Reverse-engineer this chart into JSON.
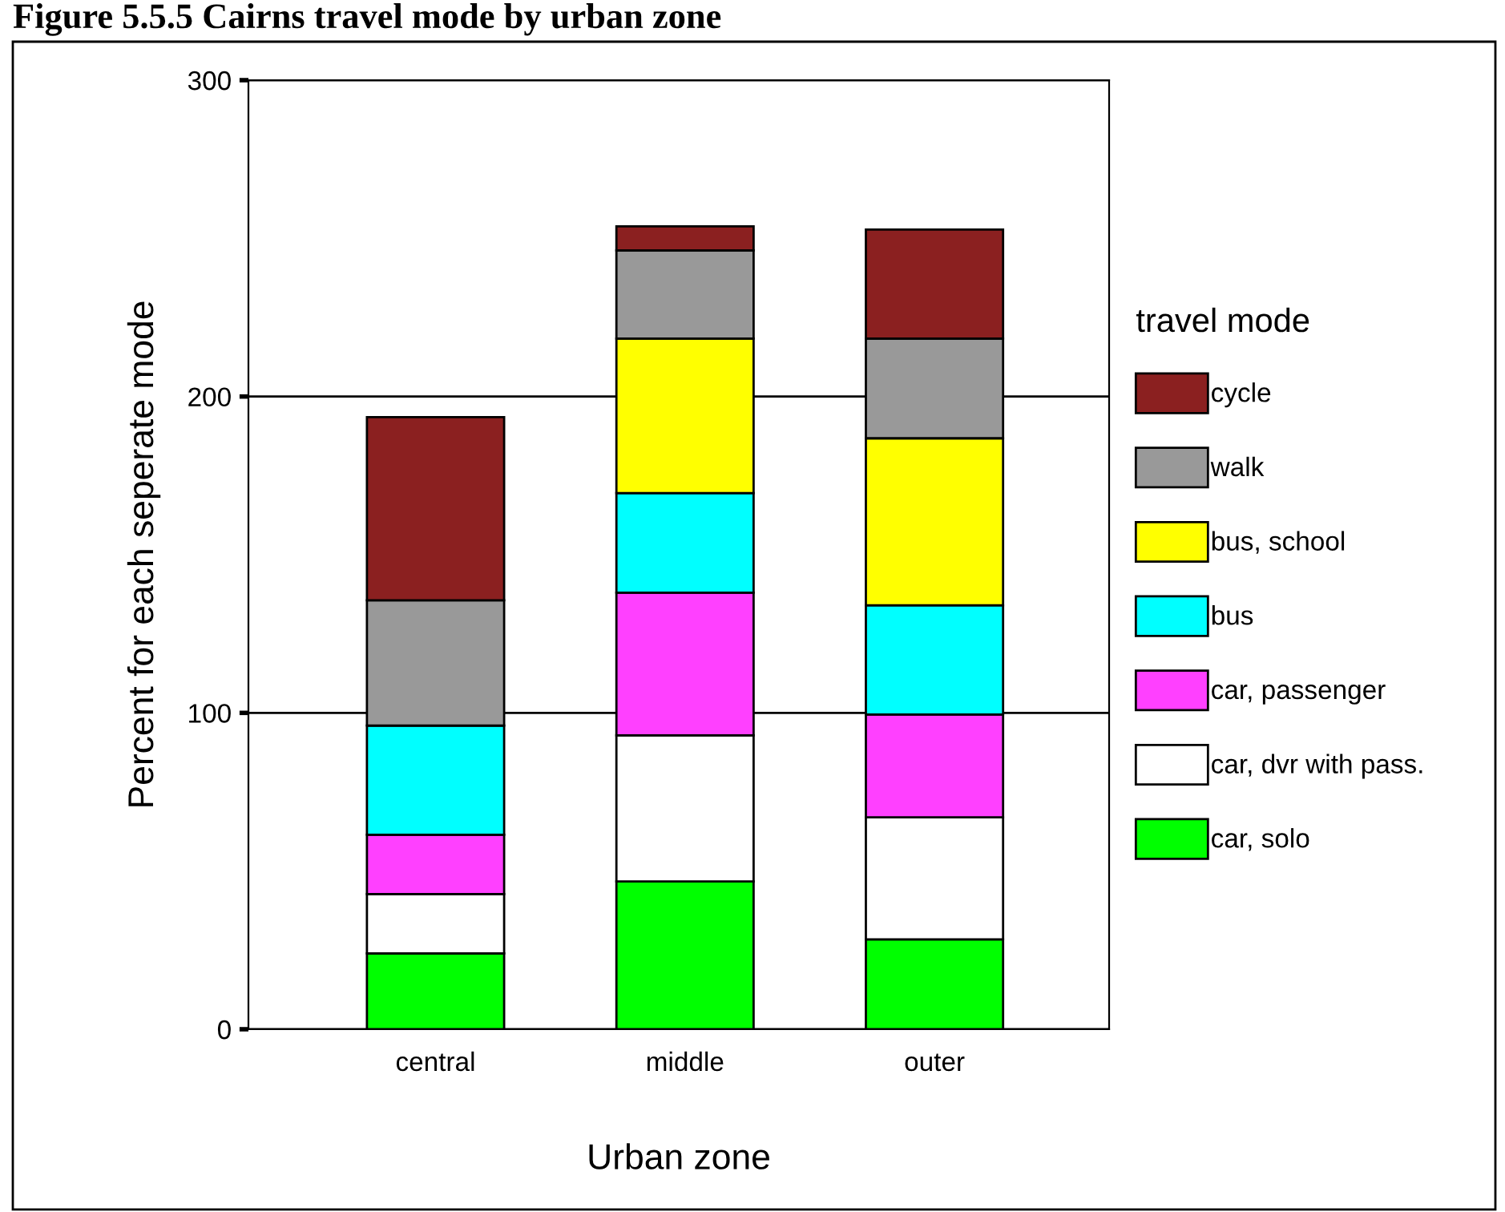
{
  "chart_data": {
    "type": "bar",
    "title": "Figure 5.5.5 Cairns travel mode by urban zone",
    "xlabel": "Urban zone",
    "ylabel": "Percent for each seperate mode",
    "legend_title": "travel mode",
    "categories": [
      "central",
      "middle",
      "outer"
    ],
    "stacked": true,
    "ylim": [
      0,
      300
    ],
    "yticks": [
      0,
      100,
      200,
      300
    ],
    "grid": "y",
    "legend": "right",
    "series": [
      {
        "name": "car, solo",
        "color": "#00ff00",
        "values": [
          24,
          46.7,
          28.4
        ]
      },
      {
        "name": "car, dvr with pass.",
        "color": "#ffffff",
        "values": [
          18.7,
          46.2,
          38.6
        ]
      },
      {
        "name": "car, passenger",
        "color": "#ff40ff",
        "values": [
          18.8,
          45.1,
          32.5
        ]
      },
      {
        "name": "bus",
        "color": "#00ffff",
        "values": [
          34.5,
          31.5,
          34.5
        ]
      },
      {
        "name": "bus, school",
        "color": "#ffff00",
        "values": [
          0,
          48.8,
          52.8
        ]
      },
      {
        "name": "walk",
        "color": "#999999",
        "values": [
          39.6,
          27.9,
          31.5
        ]
      },
      {
        "name": "cycle",
        "color": "#8b2020",
        "values": [
          57.9,
          7.6,
          34.5
        ]
      }
    ]
  }
}
